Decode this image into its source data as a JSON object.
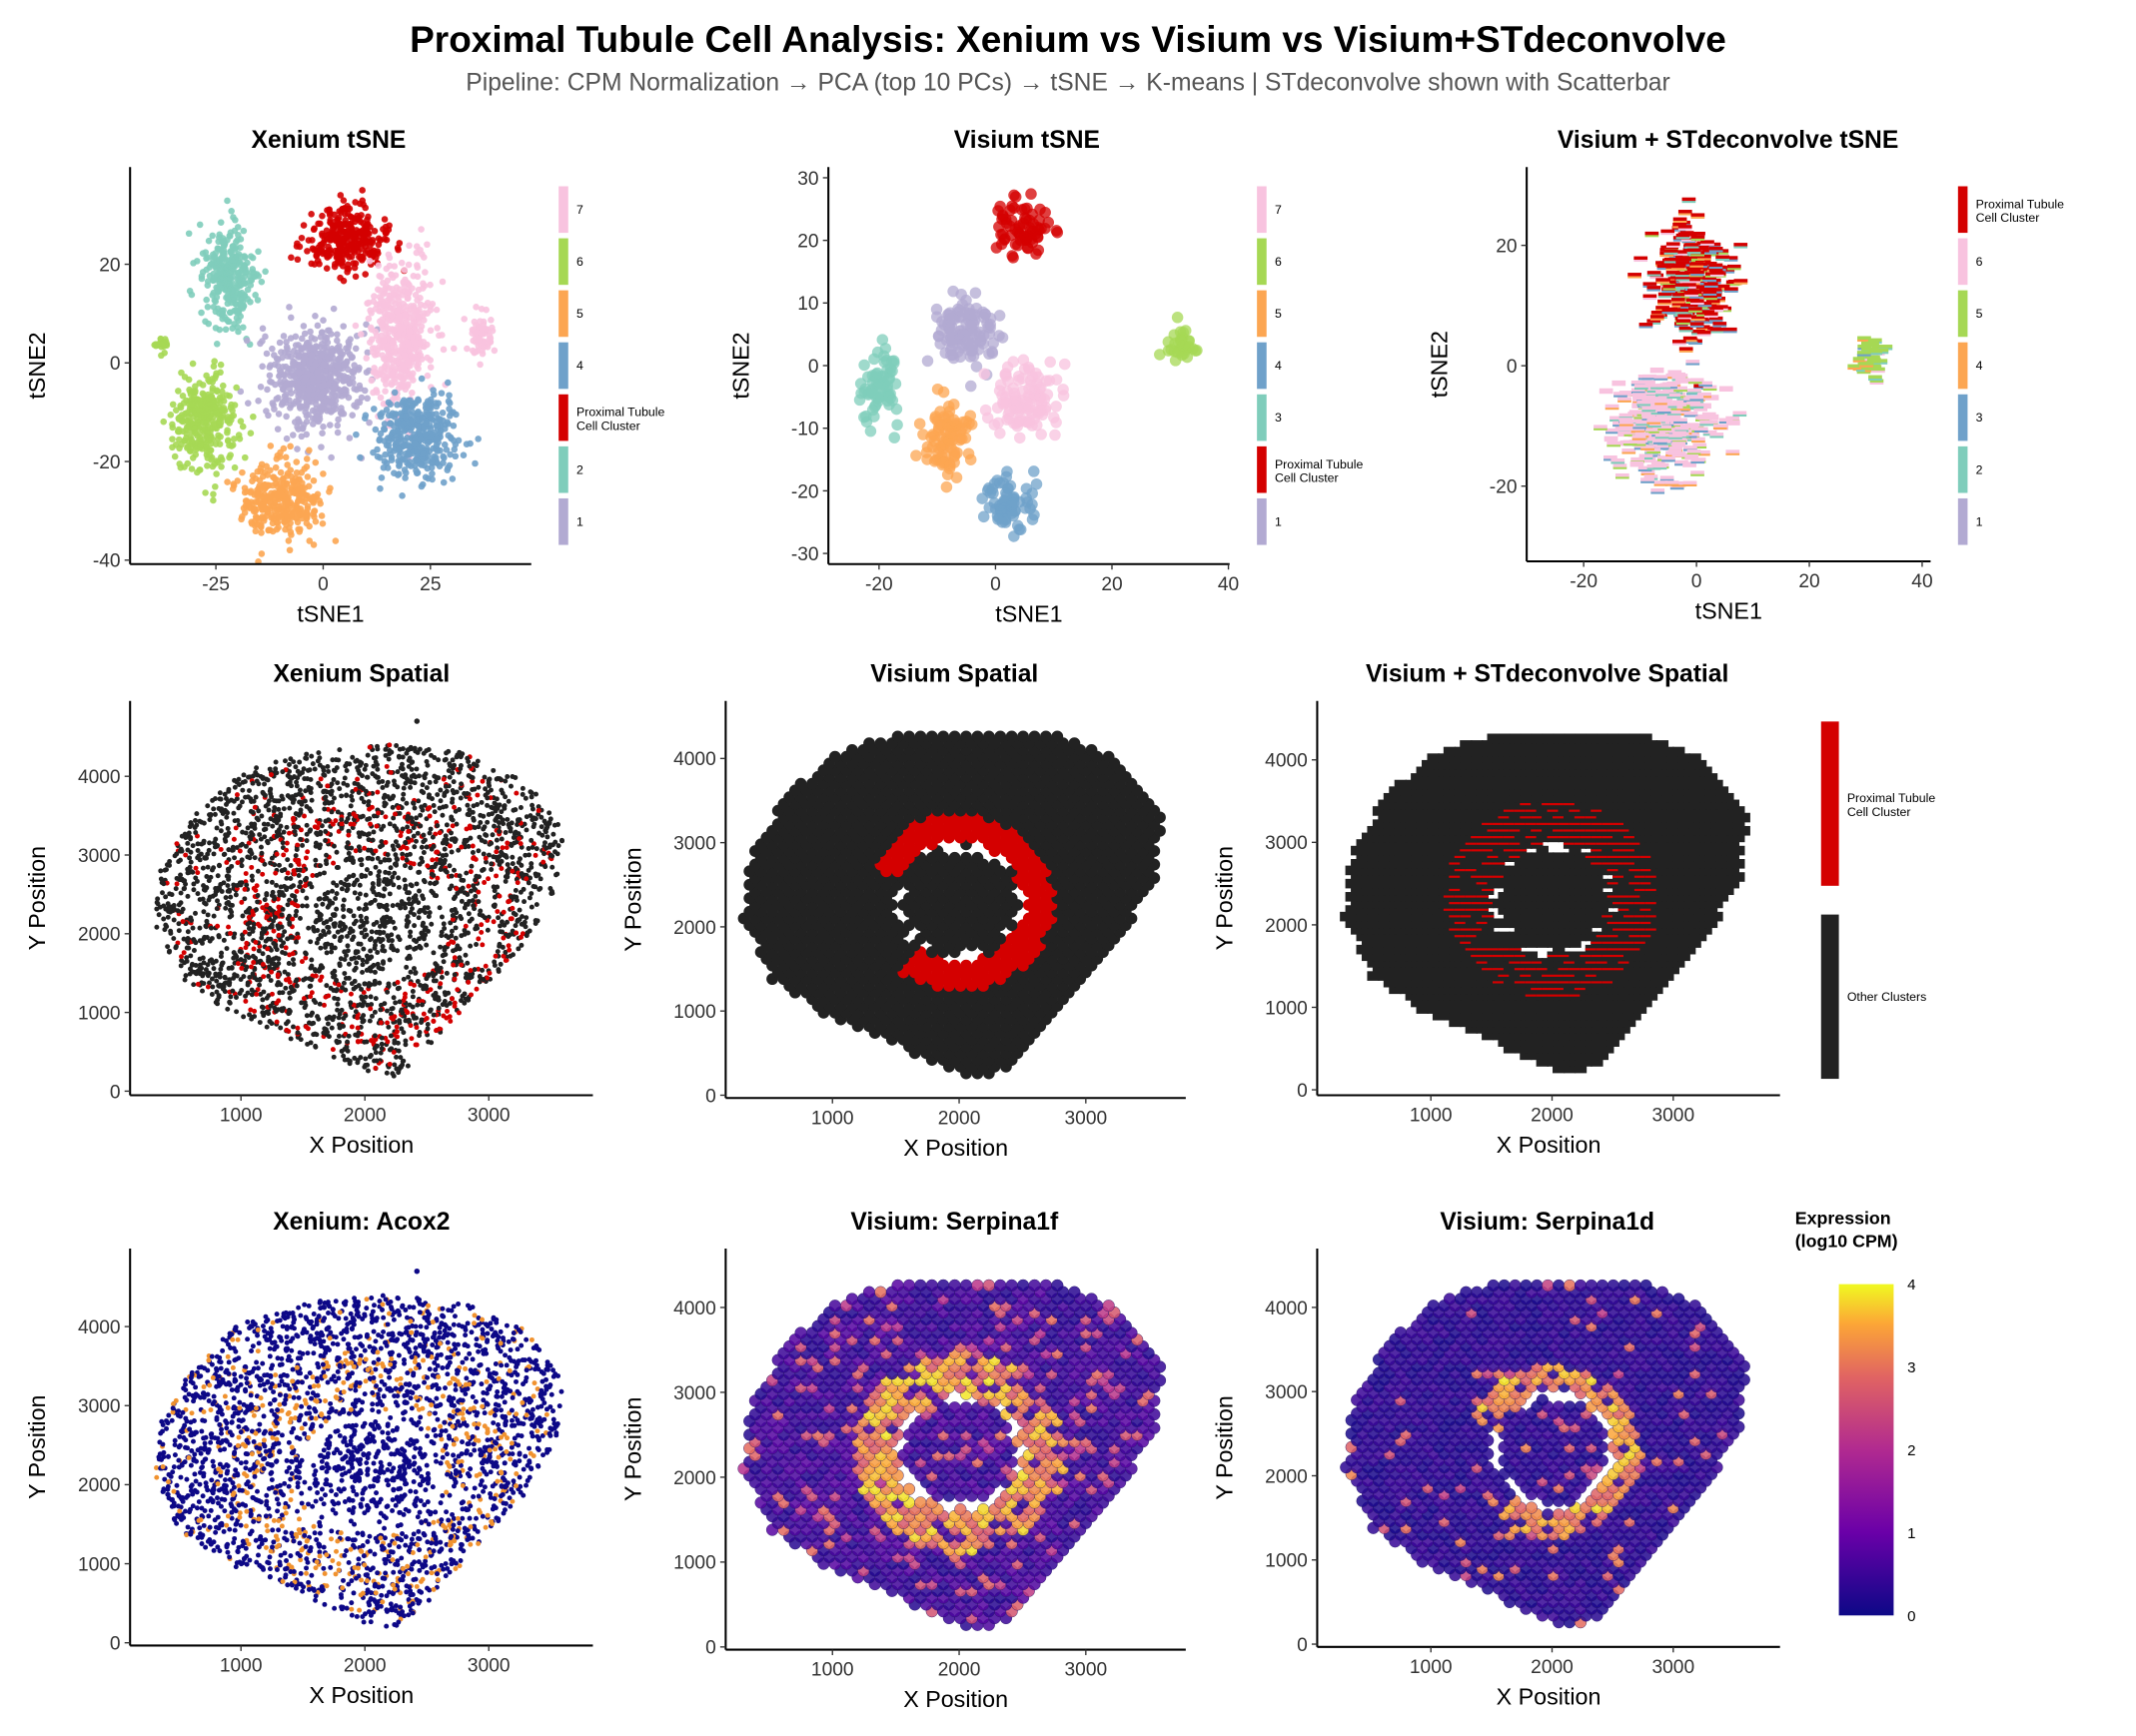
{
  "title": "Proximal Tubule Cell Analysis: Xenium vs Visium vs Visium+STdeconvolve",
  "subtitle": "Pipeline: CPM Normalization → PCA (top 10 PCs) → tSNE → K-means | STdeconvolve shown with Scatterbar",
  "colors": {
    "pt_red": "#D40000",
    "other_black": "#222222",
    "c1": "#B2AAD2",
    "c2": "#7FCDBB",
    "c3": "#7FCDBB",
    "c4": "#6FA1CA",
    "c5": "#FCA652",
    "c6": "#A6D854",
    "c7": "#F8C3DF"
  },
  "chart_data": [
    {
      "type": "scatter",
      "title": "Xenium tSNE",
      "xlabel": "tSNE1",
      "ylabel": "tSNE2",
      "xlim": [
        -45,
        48.5
      ],
      "ylim": [
        -40.8,
        39.7
      ],
      "xticks": [
        -25,
        0,
        25
      ],
      "yticks": [
        -40,
        -20,
        0,
        20
      ],
      "legend": [
        {
          "label": "7",
          "color": "#F8C3DF"
        },
        {
          "label": "6",
          "color": "#A6D854"
        },
        {
          "label": "5",
          "color": "#FCA652"
        },
        {
          "label": "4",
          "color": "#6FA1CA"
        },
        {
          "label": "Proximal Tubule Cell Cluster",
          "color": "#D40000"
        },
        {
          "label": "2",
          "color": "#7FCDBB"
        },
        {
          "label": "1",
          "color": "#B2AAD2"
        }
      ],
      "clusters": [
        {
          "label": "Proximal Tubule Cell Cluster",
          "center": [
            5,
            25
          ],
          "spread": [
            8,
            5.5
          ]
        },
        {
          "label": "2",
          "center": [
            -22,
            17
          ],
          "spread": [
            5,
            9
          ]
        },
        {
          "label": "1",
          "center": [
            -2,
            -3
          ],
          "spread": [
            9,
            9
          ]
        },
        {
          "label": "7",
          "center": [
            18,
            6
          ],
          "spread": [
            6,
            12
          ]
        },
        {
          "label": "7",
          "center": [
            37,
            5
          ],
          "spread": [
            2.5,
            4
          ]
        },
        {
          "label": "6",
          "center": [
            -28,
            -12
          ],
          "spread": [
            6,
            8
          ]
        },
        {
          "label": "6",
          "center": [
            -38,
            4
          ],
          "spread": [
            2,
            1.5
          ]
        },
        {
          "label": "5",
          "center": [
            -10,
            -28
          ],
          "spread": [
            8,
            6
          ]
        },
        {
          "label": "4",
          "center": [
            22,
            -15
          ],
          "spread": [
            8,
            7
          ]
        }
      ]
    },
    {
      "type": "scatter",
      "title": "Visium tSNE",
      "xlabel": "tSNE1",
      "ylabel": "tSNE2",
      "xlim": [
        -28.7,
        40.2
      ],
      "ylim": [
        -31.7,
        31.7
      ],
      "xticks": [
        -20,
        0,
        20,
        40
      ],
      "yticks": [
        -30,
        -20,
        -10,
        0,
        10,
        20,
        30
      ],
      "legend": [
        {
          "label": "7",
          "color": "#F8C3DF"
        },
        {
          "label": "6",
          "color": "#A6D854"
        },
        {
          "label": "5",
          "color": "#FCA652"
        },
        {
          "label": "4",
          "color": "#6FA1CA"
        },
        {
          "label": "3",
          "color": "#7FCDBB"
        },
        {
          "label": "Proximal Tubule Cell Cluster",
          "color": "#D40000"
        },
        {
          "label": "1",
          "color": "#B2AAD2"
        }
      ],
      "clusters": [
        {
          "label": "Proximal Tubule Cell Cluster",
          "center": [
            5,
            22
          ],
          "spread": [
            4,
            3.5
          ]
        },
        {
          "label": "1",
          "center": [
            -5,
            5
          ],
          "spread": [
            4.5,
            5
          ]
        },
        {
          "label": "3",
          "center": [
            -20,
            -3
          ],
          "spread": [
            2.8,
            5
          ]
        },
        {
          "label": "5",
          "center": [
            -8,
            -12
          ],
          "spread": [
            3.5,
            5
          ]
        },
        {
          "label": "7",
          "center": [
            5,
            -5
          ],
          "spread": [
            4.5,
            5
          ]
        },
        {
          "label": "4",
          "center": [
            2,
            -22
          ],
          "spread": [
            4,
            3.5
          ]
        },
        {
          "label": "6",
          "center": [
            32,
            3
          ],
          "spread": [
            2.5,
            2.5
          ]
        }
      ]
    },
    {
      "type": "scatter",
      "title": "Visium + STdeconvolve tSNE",
      "xlabel": "tSNE1",
      "ylabel": "tSNE2",
      "xlim": [
        -30.1,
        41.5
      ],
      "ylim": [
        -32.5,
        33
      ],
      "xticks": [
        -20,
        0,
        20,
        40
      ],
      "yticks": [
        -20,
        0,
        20
      ],
      "legend": [
        {
          "label": "Proximal Tubule Cell Cluster",
          "color": "#D40000"
        },
        {
          "label": "6",
          "color": "#F8C3DF"
        },
        {
          "label": "5",
          "color": "#A6D854"
        },
        {
          "label": "4",
          "color": "#FCA652"
        },
        {
          "label": "3",
          "color": "#6FA1CA"
        },
        {
          "label": "2",
          "color": "#7FCDBB"
        },
        {
          "label": "1",
          "color": "#B2AAD2"
        }
      ],
      "clusters": [
        {
          "label": "Proximal Tubule Cell Cluster",
          "center": [
            -1,
            14
          ],
          "spread": [
            6,
            9
          ]
        },
        {
          "label": "6",
          "center": [
            -6,
            -10
          ],
          "spread": [
            8,
            8
          ]
        },
        {
          "label": "5",
          "center": [
            31,
            1
          ],
          "spread": [
            2.5,
            3
          ]
        }
      ]
    },
    {
      "type": "scatter",
      "title": "Xenium Spatial",
      "xlabel": "X Position",
      "ylabel": "Y Position",
      "xlim": [
        105,
        3840
      ],
      "ylim": [
        -52,
        4957
      ],
      "xticks": [
        1000,
        2000,
        3000
      ],
      "yticks": [
        0,
        1000,
        2000,
        3000,
        4000
      ]
    },
    {
      "type": "scatter",
      "title": "Visium Spatial",
      "xlabel": "X Position",
      "ylabel": "Y Position",
      "xlim": [
        157,
        3789
      ],
      "ylim": [
        -33,
        4683
      ],
      "xticks": [
        1000,
        2000,
        3000
      ],
      "yticks": [
        0,
        1000,
        2000,
        3000,
        4000
      ]
    },
    {
      "type": "scatter",
      "title": "Visium + STdeconvolve Spatial",
      "xlabel": "X Position",
      "ylabel": "Y Position",
      "xlim": [
        62,
        3881
      ],
      "ylim": [
        -66,
        4714
      ],
      "xticks": [
        1000,
        2000,
        3000
      ],
      "yticks": [
        0,
        1000,
        2000,
        3000,
        4000
      ],
      "legend": [
        {
          "label": "Proximal Tubule Cell Cluster",
          "color": "#D40000"
        },
        {
          "label": "Other Clusters",
          "color": "#222222"
        }
      ]
    },
    {
      "type": "scatter",
      "title": "Xenium: Acox2",
      "xlabel": "X Position",
      "ylabel": "Y Position",
      "xlim": [
        105,
        3840
      ],
      "ylim": [
        -35,
        4987
      ],
      "xticks": [
        1000,
        2000,
        3000
      ],
      "yticks": [
        0,
        1000,
        2000,
        3000,
        4000
      ]
    },
    {
      "type": "scatter",
      "title": "Visium: Serpina1f",
      "xlabel": "X Position",
      "ylabel": "Y Position",
      "xlim": [
        157,
        3789
      ],
      "ylim": [
        -32,
        4694
      ],
      "xticks": [
        1000,
        2000,
        3000
      ],
      "yticks": [
        0,
        1000,
        2000,
        3000,
        4000
      ]
    },
    {
      "type": "scatter",
      "title": "Visium: Serpina1d",
      "xlabel": "X Position",
      "ylabel": "Y Position",
      "xlim": [
        62,
        3881
      ],
      "ylim": [
        -33,
        4699
      ],
      "xticks": [
        1000,
        2000,
        3000
      ],
      "yticks": [
        0,
        1000,
        2000,
        3000,
        4000
      ]
    }
  ],
  "colorbar": {
    "title_line1": "Expression",
    "title_line2": "(log10 CPM)",
    "ticks": [
      0,
      1,
      2,
      3,
      4
    ],
    "range": [
      0,
      4
    ],
    "palette": "plasma"
  }
}
